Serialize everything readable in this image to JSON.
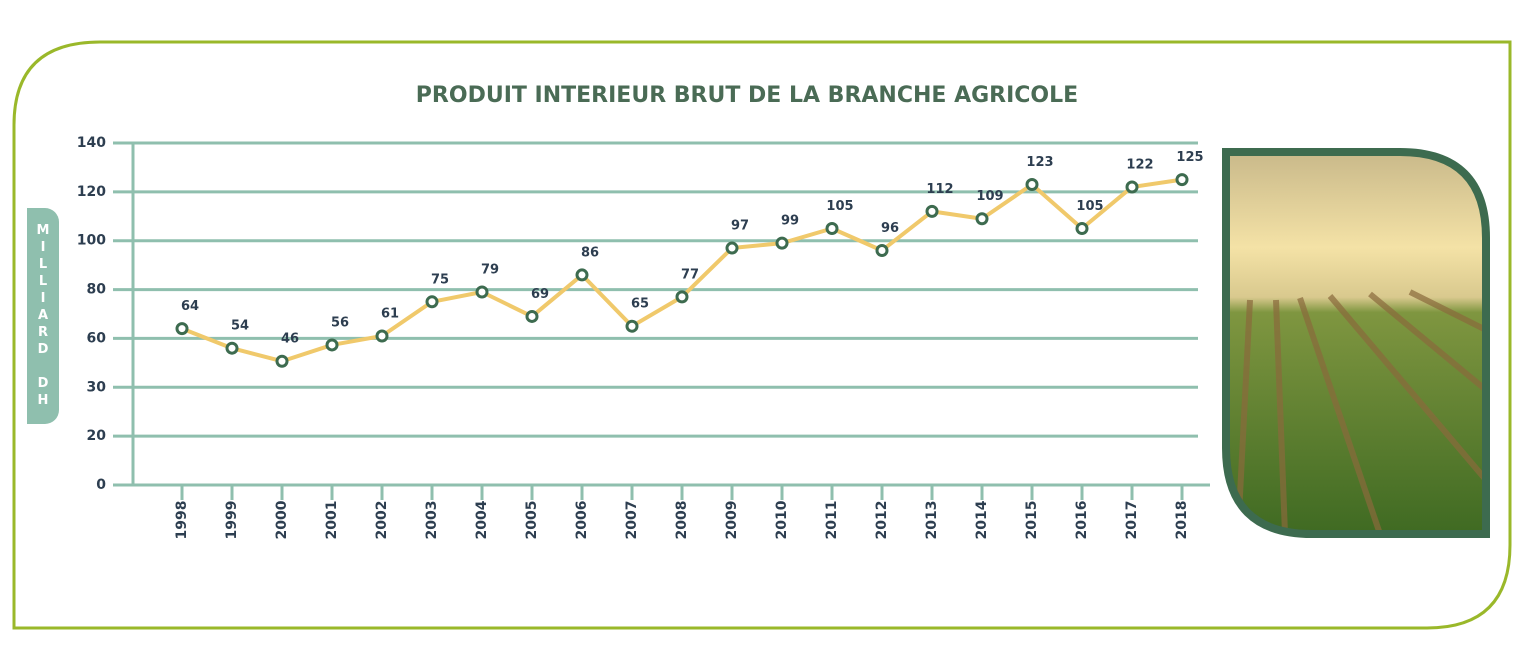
{
  "chart_data": {
    "type": "line",
    "title": "PRODUIT INTERIEUR BRUT DE LA BRANCHE AGRICOLE",
    "y_label": "MILLIARD DH",
    "categories": [
      "1998",
      "1999",
      "2000",
      "2001",
      "2002",
      "2003",
      "2004",
      "2005",
      "2006",
      "2007",
      "2008",
      "2009",
      "2010",
      "2011",
      "2012",
      "2013",
      "2014",
      "2015",
      "2016",
      "2017",
      "2018"
    ],
    "values": [
      64,
      54,
      46,
      56,
      61,
      75,
      79,
      69,
      86,
      65,
      77,
      97,
      99,
      105,
      96,
      112,
      109,
      123,
      105,
      122,
      125
    ],
    "color": "#f0c96b",
    "ylim": [
      0,
      140
    ],
    "yticks": [
      0,
      20,
      30,
      60,
      80,
      100,
      120,
      140
    ],
    "grid": true
  }
}
